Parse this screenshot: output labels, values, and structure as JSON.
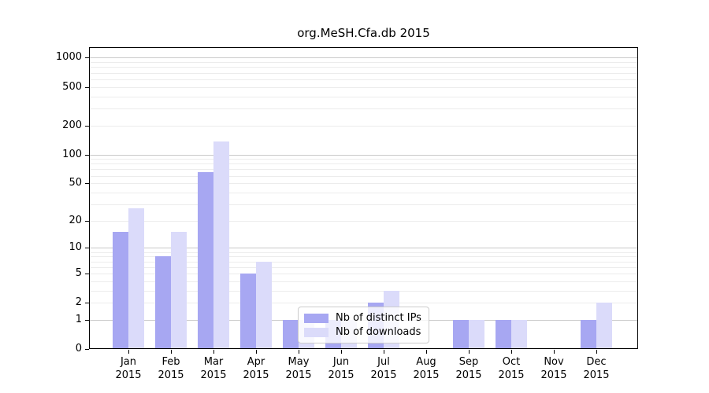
{
  "chart_data": {
    "type": "bar",
    "title": "org.MeSH.Cfa.db 2015",
    "year": "2015",
    "months": [
      "Jan",
      "Feb",
      "Mar",
      "Apr",
      "May",
      "Jun",
      "Jul",
      "Aug",
      "Sep",
      "Oct",
      "Nov",
      "Dec"
    ],
    "series": [
      {
        "name": "Nb of distinct IPs",
        "color": "#a7a7f2",
        "values": [
          15,
          8,
          66,
          5,
          1,
          1,
          2,
          0,
          1,
          1,
          0,
          1
        ]
      },
      {
        "name": "Nb of downloads",
        "color": "#dbdbfa",
        "values": [
          27,
          15,
          137,
          7,
          1,
          1,
          3,
          0,
          1,
          1,
          0,
          2
        ]
      }
    ],
    "xlabel": "",
    "ylabel": "",
    "scale": "log1p",
    "ylim": [
      0,
      1270
    ],
    "y_tick_values": [
      0,
      1,
      2,
      5,
      10,
      20,
      50,
      100,
      200,
      500,
      1000
    ],
    "y_tick_labels": [
      "0",
      "1",
      "2",
      "5",
      "10",
      "20",
      "50",
      "100",
      "200",
      "500",
      "1000"
    ],
    "y_major_gridlines": [
      1,
      10,
      100,
      1000
    ],
    "y_minor_gridlines": [
      2,
      3,
      4,
      5,
      6,
      7,
      8,
      9,
      20,
      30,
      40,
      50,
      60,
      70,
      80,
      90,
      200,
      300,
      400,
      500,
      600,
      700,
      800,
      900
    ],
    "grid": "horizontal",
    "legend_position": "inside-bottom-center",
    "colors": {
      "background": "#ffffff",
      "axis": "#000000",
      "grid_major": "#c9c9c9",
      "grid_minor": "#ececec",
      "legend_border": "#cccccc"
    }
  }
}
